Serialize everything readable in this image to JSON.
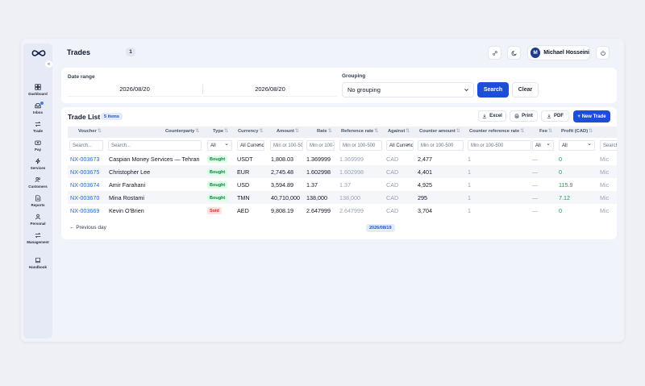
{
  "header": {
    "title": "Trades",
    "count": "1",
    "user_initial": "M",
    "user_name": "Michael Hosseini"
  },
  "sidebar": {
    "collapse_icon": "«",
    "items": [
      {
        "label": "Dashboard",
        "icon": "dashboard-icon"
      },
      {
        "label": "Inbox",
        "icon": "inbox-icon"
      },
      {
        "label": "Trade",
        "icon": "swap-icon"
      },
      {
        "label": "Pay",
        "icon": "wallet-icon"
      },
      {
        "label": "Services",
        "icon": "bolt-icon"
      },
      {
        "label": "Customers",
        "icon": "users-icon"
      },
      {
        "label": "Reports",
        "icon": "report-icon"
      },
      {
        "label": "Personal",
        "icon": "user-icon"
      },
      {
        "label": "Management",
        "icon": "swap-icon"
      },
      {
        "label": "Handbook",
        "icon": "book-icon"
      }
    ]
  },
  "filters": {
    "date_range_label": "Date range",
    "date_from": "2026/08/20",
    "date_to": "2026/08/20",
    "grouping_label": "Grouping",
    "grouping_value": "No grouping",
    "search_label": "Search",
    "clear_label": "Clear"
  },
  "trade_list": {
    "title": "Trade List",
    "items_badge": "5 items",
    "excel_label": "Excel",
    "print_label": "Print",
    "pdf_label": "PDF",
    "new_trade_label": "+ New Trade",
    "columns": [
      "Voucher",
      "Counterparty",
      "Type",
      "Currency",
      "Amount",
      "Rate",
      "Reference rate",
      "Against",
      "Counter amount",
      "Counter reference rate",
      "Fee",
      "Profit (CAD)"
    ],
    "sort_glyph": "⇅",
    "filter_row": {
      "voucher": "Search...",
      "counterparty": "Search...",
      "type": "All",
      "currency": "All Currencies",
      "amount": "Min or 100-500",
      "rate": "Min or 100-500",
      "reference_rate": "Min or 100-500",
      "against": "All Currencies",
      "counter_amount": "Min or 100-500",
      "counter_reference_rate": "Min or 100-500",
      "fee": "All",
      "profit": "All",
      "extra": "Search..."
    },
    "rows": [
      {
        "voucher": "NX-003673",
        "counterparty": "Caspian Money Services — Tehran",
        "type": "Bought",
        "currency": "USDT",
        "amount": "1,808.03",
        "rate": "1.369999",
        "reference_rate": "1.369999",
        "against": "CAD",
        "counter_amount": "2,477",
        "counter_reference_rate": "1",
        "fee": "—",
        "profit": "0",
        "extra": "Mic"
      },
      {
        "voucher": "NX-003675",
        "counterparty": "Christopher Lee",
        "type": "Bought",
        "currency": "EUR",
        "amount": "2,745.48",
        "rate": "1.602998",
        "reference_rate": "1.602998",
        "against": "CAD",
        "counter_amount": "4,401",
        "counter_reference_rate": "1",
        "fee": "—",
        "profit": "0",
        "extra": "Mic"
      },
      {
        "voucher": "NX-003674",
        "counterparty": "Amir Farahani",
        "type": "Bought",
        "currency": "USD",
        "amount": "3,594.89",
        "rate": "1.37",
        "reference_rate": "1.37",
        "against": "CAD",
        "counter_amount": "4,925",
        "counter_reference_rate": "1",
        "fee": "—",
        "profit": "115.9",
        "extra": "Mic"
      },
      {
        "voucher": "NX-003670",
        "counterparty": "Mina Rostami",
        "type": "Bought",
        "currency": "TMN",
        "amount": "40,710,000",
        "rate": "138,000",
        "reference_rate": "138,000",
        "against": "CAD",
        "counter_amount": "295",
        "counter_reference_rate": "1",
        "fee": "—",
        "profit": "7.12",
        "extra": "Mic"
      },
      {
        "voucher": "NX-003669",
        "counterparty": "Kevin O'Brien",
        "type": "Sold",
        "currency": "AED",
        "amount": "9,808.19",
        "rate": "2.647999",
        "reference_rate": "2.647999",
        "against": "CAD",
        "counter_amount": "3,704",
        "counter_reference_rate": "1",
        "fee": "—",
        "profit": "0",
        "extra": "Mic"
      }
    ],
    "previous_day_label": "← Previous day",
    "current_date_chip": "2026/08/19"
  }
}
